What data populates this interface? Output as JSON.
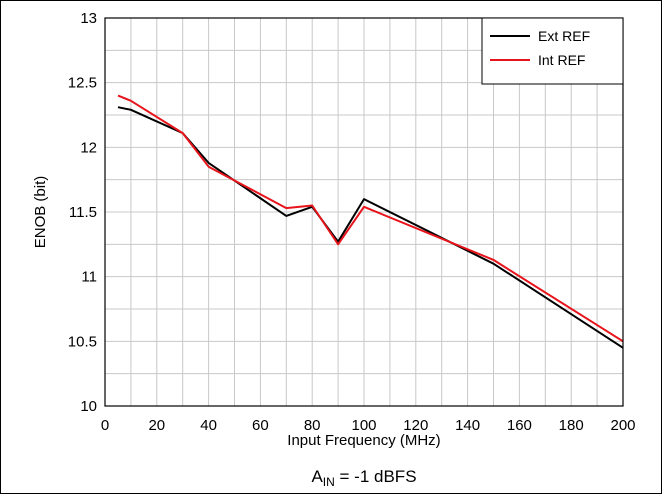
{
  "chart_data": {
    "type": "line",
    "xlabel": "Input Frequency (MHz)",
    "ylabel": "ENOB (bit)",
    "xlim": [
      0,
      200
    ],
    "ylim": [
      10,
      13
    ],
    "x_ticks": [
      0,
      20,
      40,
      60,
      80,
      100,
      120,
      140,
      160,
      180,
      200
    ],
    "x_tick_labels": [
      "0",
      "20",
      "40",
      "60",
      "80",
      "100",
      "120",
      "140",
      "160",
      "180",
      "200"
    ],
    "y_ticks": [
      10,
      10.5,
      11,
      11.5,
      12,
      12.5,
      13
    ],
    "y_tick_labels": [
      "10",
      "10.5",
      "11",
      "11.5",
      "12",
      "12.5",
      "13"
    ],
    "grid": "on",
    "legend_position": "top-right",
    "series": [
      {
        "name": "Ext REF",
        "color": "#000000",
        "x": [
          5,
          10,
          30,
          40,
          70,
          80,
          90,
          100,
          150,
          200
        ],
        "y": [
          12.31,
          12.29,
          12.11,
          11.88,
          11.47,
          11.54,
          11.27,
          11.6,
          11.1,
          10.45
        ]
      },
      {
        "name": "Int REF",
        "color": "#e8141b",
        "x": [
          5,
          10,
          30,
          40,
          70,
          80,
          90,
          100,
          150,
          200
        ],
        "y": [
          12.4,
          12.36,
          12.11,
          11.85,
          11.53,
          11.55,
          11.25,
          11.54,
          11.13,
          10.5
        ]
      }
    ],
    "caption": {
      "main": "A",
      "sub": "IN",
      "rest": " = -1 dBFS"
    }
  }
}
